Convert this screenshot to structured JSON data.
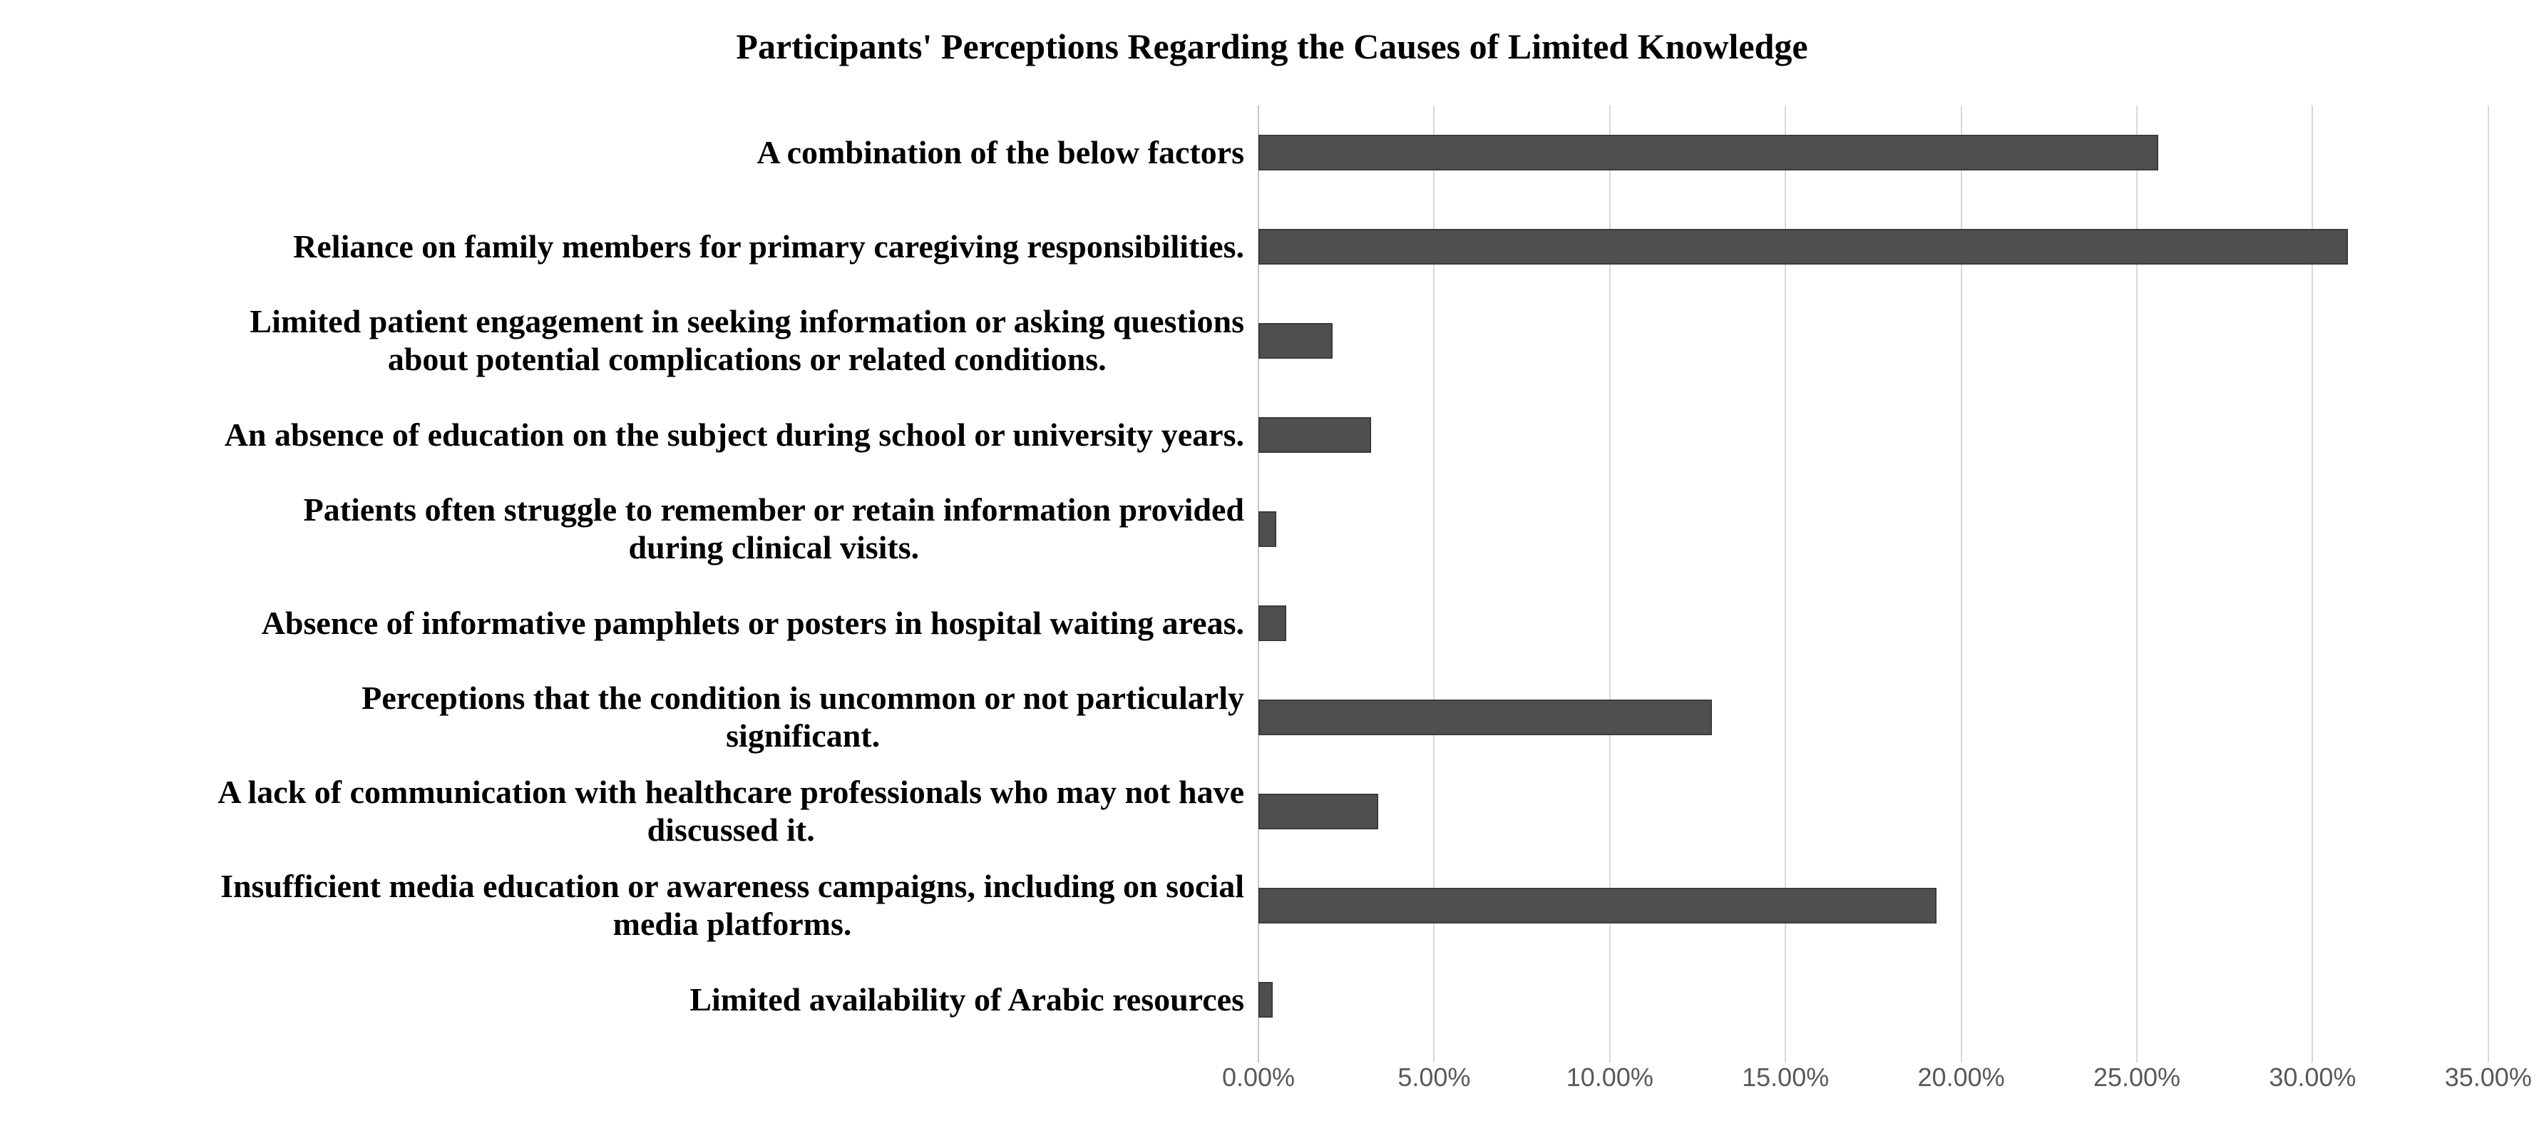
{
  "chart_data": {
    "type": "bar",
    "orientation": "horizontal",
    "title": "Participants' Perceptions Regarding the Causes of Limited Knowledge",
    "categories": [
      "A combination of the below factors",
      "Reliance on family members for primary caregiving responsibilities.",
      "Limited patient engagement in seeking information or asking questions\nabout potential complications or related conditions.",
      "An absence of education on the subject during school or university years.",
      "Patients often struggle to remember or retain information provided\nduring clinical visits.",
      "Absence of informative pamphlets or posters in hospital waiting areas.",
      "Perceptions that the condition is uncommon or not particularly\nsignificant.",
      "A lack of communication with healthcare professionals who may not have\ndiscussed it.",
      "Insufficient media education or awareness campaigns, including on social\nmedia platforms.",
      "Limited availability of Arabic resources"
    ],
    "values": [
      25.6,
      31.0,
      2.1,
      3.2,
      0.5,
      0.8,
      12.9,
      3.4,
      19.3,
      0.4
    ],
    "unit": "%",
    "xlabel": "",
    "ylabel": "",
    "xlim": [
      0,
      35
    ],
    "x_tick_values": [
      0,
      5,
      10,
      15,
      20,
      25,
      30,
      35
    ],
    "x_ticks": [
      "0.00%",
      "5.00%",
      "10.00%",
      "15.00%",
      "20.00%",
      "25.00%",
      "30.00%",
      "35.00%"
    ],
    "grid": true,
    "legend": false,
    "bar_color": "#4f4f4f",
    "bar_border_color": "#3b3b3b",
    "gridline_color": "#d9d9d9",
    "axis_line_color": "#c6c6c6",
    "tick_text_color": "#595959",
    "title_color": "#000000",
    "label_color": "#000000"
  }
}
